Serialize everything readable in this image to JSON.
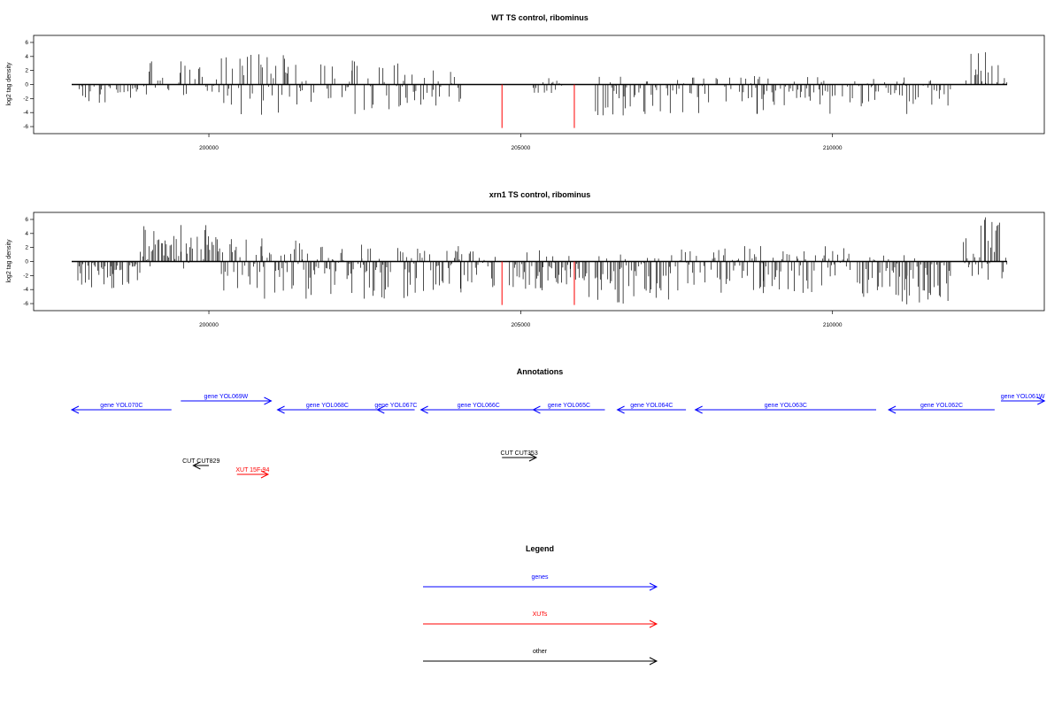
{
  "chart_data": [
    {
      "type": "bar",
      "title": "WT TS control, ribominus",
      "xlabel": "",
      "ylabel": "log2 tag density",
      "xlim": [
        197800,
        212800
      ],
      "ylim": [
        -6.5,
        6.5
      ],
      "xticks": [
        200000,
        205000,
        210000
      ],
      "yticks": [
        -6,
        -4,
        -2,
        0,
        2,
        4,
        6
      ],
      "grid": false,
      "peak_ranges": [
        {
          "x_start": 197900,
          "x_end": 198500,
          "min": -2.6,
          "max": 0
        },
        {
          "x_start": 198400,
          "x_end": 199000,
          "min": -1.9,
          "max": 0
        },
        {
          "x_start": 199000,
          "x_end": 200100,
          "min": -1.5,
          "max": 3.3
        },
        {
          "x_start": 200100,
          "x_end": 201500,
          "min": -4.3,
          "max": 4.3
        },
        {
          "x_start": 201500,
          "x_end": 203100,
          "min": -4.2,
          "max": 3.4
        },
        {
          "x_start": 203100,
          "x_end": 204100,
          "min": -3.0,
          "max": 2.0
        },
        {
          "x_start": 205200,
          "x_end": 205700,
          "min": -1.2,
          "max": 0.9
        },
        {
          "x_start": 206100,
          "x_end": 207100,
          "min": -4.4,
          "max": 1.1
        },
        {
          "x_start": 207100,
          "x_end": 210400,
          "min": -4.2,
          "max": 1.2
        },
        {
          "x_start": 210400,
          "x_end": 211900,
          "min": -4.2,
          "max": 1.0
        },
        {
          "x_start": 212100,
          "x_end": 212800,
          "min": 0.0,
          "max": 4.6
        }
      ],
      "highlighted_lines": [
        {
          "x": 204700,
          "y": -6.2,
          "color": "#ff0000"
        },
        {
          "x": 205860,
          "y": -6.2,
          "color": "#ff0000"
        }
      ]
    },
    {
      "type": "bar",
      "title": "xrn1 TS control, ribominus",
      "xlabel": "",
      "ylabel": "log2 tag density",
      "xlim": [
        197800,
        212800
      ],
      "ylim": [
        -6.5,
        6.5
      ],
      "xticks": [
        200000,
        205000,
        210000
      ],
      "yticks": [
        -6,
        -4,
        -2,
        0,
        2,
        4,
        6
      ],
      "grid": false,
      "peak_ranges": [
        {
          "x_start": 197900,
          "x_end": 198900,
          "min": -3.8,
          "max": 0
        },
        {
          "x_start": 198900,
          "x_end": 200200,
          "min": -1.0,
          "max": 5.2
        },
        {
          "x_start": 200200,
          "x_end": 201500,
          "min": -5.3,
          "max": 3.3
        },
        {
          "x_start": 201500,
          "x_end": 203400,
          "min": -5.3,
          "max": 2.4
        },
        {
          "x_start": 203400,
          "x_end": 204600,
          "min": -4.4,
          "max": 2.2
        },
        {
          "x_start": 204800,
          "x_end": 205800,
          "min": -4.1,
          "max": 1.6
        },
        {
          "x_start": 205800,
          "x_end": 207400,
          "min": -6.0,
          "max": 1.0
        },
        {
          "x_start": 207400,
          "x_end": 210300,
          "min": -4.5,
          "max": 2.2
        },
        {
          "x_start": 210400,
          "x_end": 211900,
          "min": -6.1,
          "max": 0.9
        },
        {
          "x_start": 212100,
          "x_end": 212800,
          "min": -2.6,
          "max": 6.3
        }
      ],
      "highlighted_lines": [
        {
          "x": 204700,
          "y": -6.2,
          "color": "#ff0000"
        },
        {
          "x": 205860,
          "y": -6.2,
          "color": "#ff0000"
        }
      ]
    }
  ],
  "annotations": {
    "title": "Annotations",
    "features": [
      {
        "label": "gene YOL070C",
        "type": "genes",
        "row": 2,
        "start": 197800,
        "end": 199400,
        "strand": "-"
      },
      {
        "label": "gene YOL069W",
        "type": "genes",
        "row": 1,
        "start": 199550,
        "end": 201000,
        "strand": "+"
      },
      {
        "label": "gene YOL068C",
        "type": "genes",
        "row": 2,
        "start": 201100,
        "end": 202700,
        "strand": "-"
      },
      {
        "label": "gene YOL067C",
        "type": "genes",
        "row": 2,
        "start": 202700,
        "end": 203300,
        "strand": "-"
      },
      {
        "label": "gene YOL066C",
        "type": "genes",
        "row": 2,
        "start": 203400,
        "end": 205250,
        "strand": "-"
      },
      {
        "label": "gene YOL065C",
        "type": "genes",
        "row": 2,
        "start": 205200,
        "end": 206350,
        "strand": "-"
      },
      {
        "label": "gene YOL064C",
        "type": "genes",
        "row": 2,
        "start": 206550,
        "end": 207650,
        "strand": "-"
      },
      {
        "label": "gene YOL063C",
        "type": "genes",
        "row": 2,
        "start": 207800,
        "end": 210700,
        "strand": "-"
      },
      {
        "label": "gene YOL062C",
        "type": "genes",
        "row": 2,
        "start": 210900,
        "end": 212600,
        "strand": "-"
      },
      {
        "label": "gene YOL061W",
        "type": "genes",
        "row": 1,
        "start": 212700,
        "end": 213400,
        "strand": "+"
      },
      {
        "label": "CUT CUT829",
        "type": "other",
        "row": 4,
        "start": 199750,
        "end": 200000,
        "strand": "-"
      },
      {
        "label": "XUT 15F-94",
        "type": "XUTs",
        "row": 5,
        "start": 200450,
        "end": 200950,
        "strand": "+"
      },
      {
        "label": "CUT CUT353",
        "type": "other",
        "row": 3,
        "start": 204700,
        "end": 205250,
        "strand": "+"
      }
    ]
  },
  "legend": {
    "title": "Legend",
    "items": [
      {
        "label": "genes",
        "color": "#0000ff"
      },
      {
        "label": "XUTs",
        "color": "#ff0000"
      },
      {
        "label": "other",
        "color": "#000000"
      }
    ]
  },
  "colors": {
    "genes": "#0000ff",
    "XUTs": "#ff0000",
    "other": "#000000",
    "signal": "#000000",
    "highlight": "#ff0000"
  }
}
